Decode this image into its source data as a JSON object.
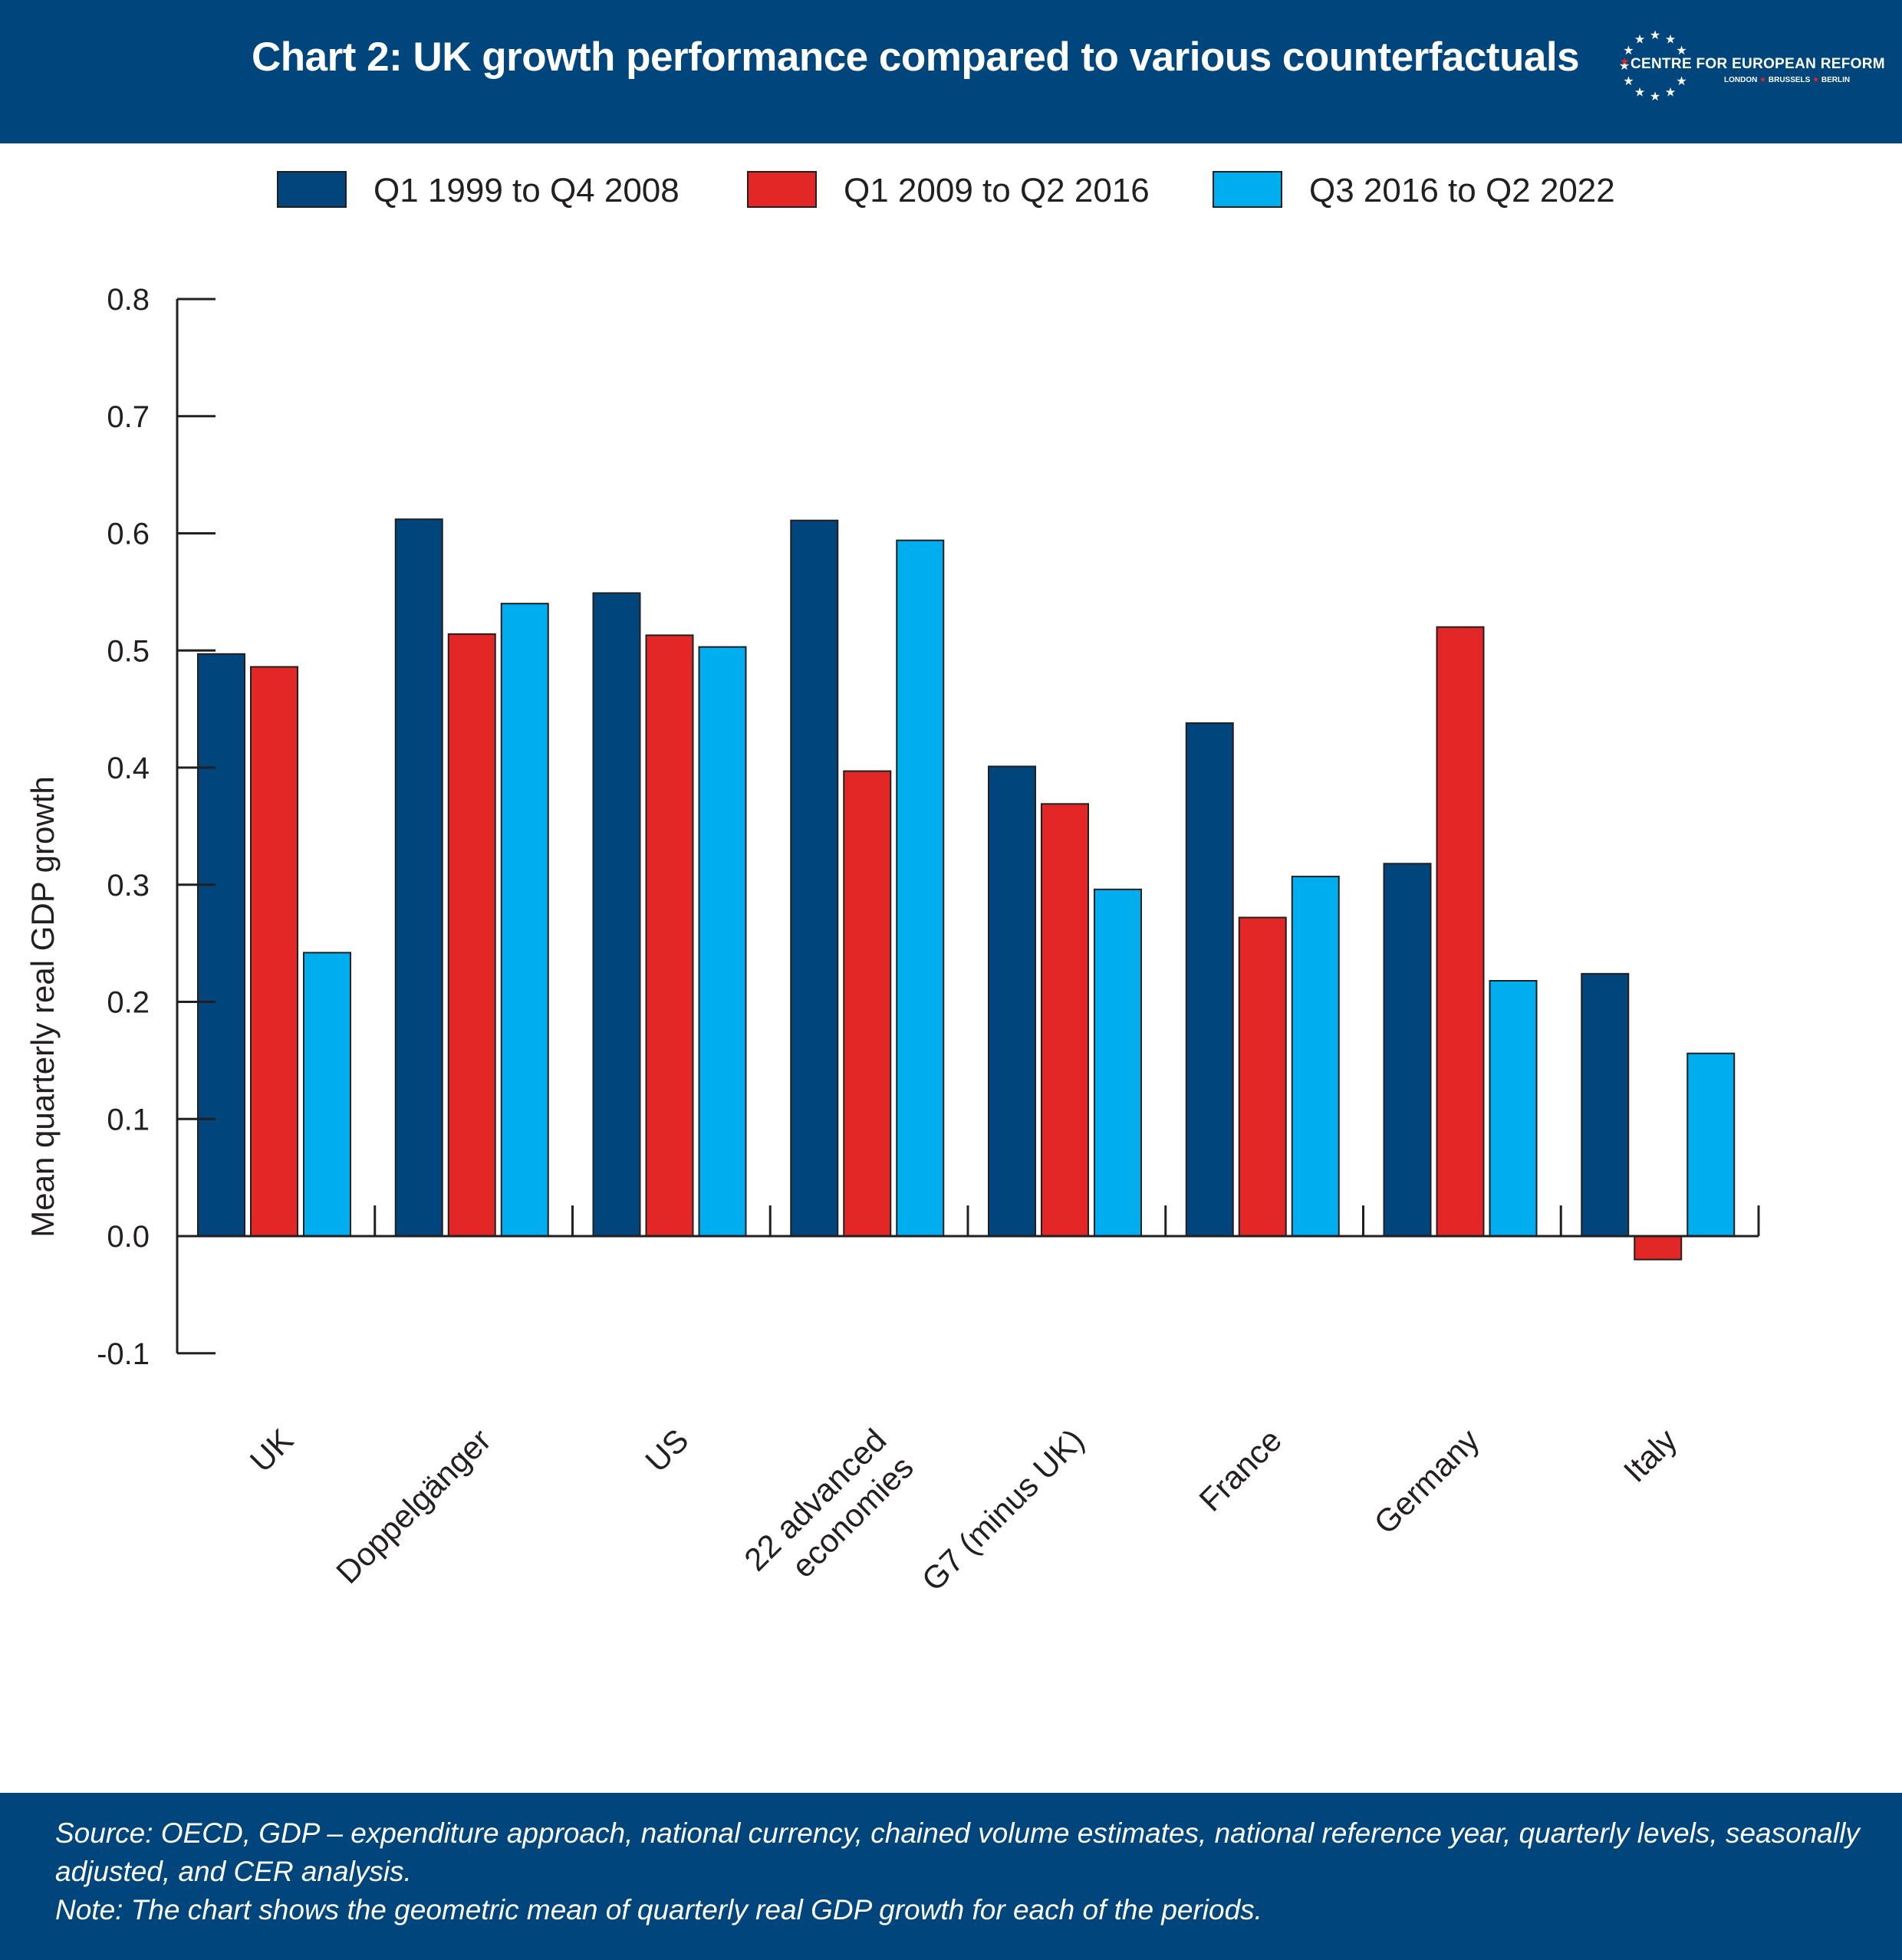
{
  "header": {
    "title": "Chart 2: UK growth performance compared to various counterfactuals",
    "logo_name": "CENTRE FOR EUROPEAN REFORM",
    "logo_cities": [
      "LONDON",
      "BRUSSELS",
      "BERLIN"
    ]
  },
  "footer": {
    "source_line1": "Source:  OECD, GDP – expenditure approach, national currency, chained volume estimates, national reference year, quarterly levels, seasonally",
    "source_line2": "adjusted, and CER analysis.",
    "note": "Note: The chart shows the geometric mean of quarterly real GDP growth for each of the periods."
  },
  "colors": {
    "header_bg": "#00457c",
    "series_1": "#00457c",
    "series_2": "#e32726",
    "series_3": "#00aeef",
    "logo_star": "#e32726"
  },
  "chart_data": {
    "type": "bar",
    "title": "Chart 2: UK growth performance compared to various counterfactuals",
    "xlabel": "",
    "ylabel": "Mean quarterly real GDP growth",
    "ylim": [
      -0.1,
      0.8
    ],
    "yticks": [
      "0.8",
      "0.7",
      "0.6",
      "0.5",
      "0.4",
      "0.3",
      "0.2",
      "0.1",
      "0.0",
      "-0.1"
    ],
    "legend_position": "top",
    "grid": false,
    "categories": [
      "UK",
      "Doppelgänger",
      "US",
      "22 advanced economies",
      "G7 (minus UK)",
      "France",
      "Germany",
      "Italy"
    ],
    "category_labels": [
      [
        "UK"
      ],
      [
        "Doppelgänger"
      ],
      [
        "US"
      ],
      [
        "22 advanced",
        "economies"
      ],
      [
        "G7 (minus UK)"
      ],
      [
        "France"
      ],
      [
        "Germany"
      ],
      [
        "Italy"
      ]
    ],
    "series": [
      {
        "name": "Q1 1999 to Q4 2008",
        "color": "#00457c",
        "values": [
          0.497,
          0.612,
          0.549,
          0.611,
          0.401,
          0.438,
          0.318,
          0.224
        ]
      },
      {
        "name": "Q1 2009 to Q2 2016",
        "color": "#e32726",
        "values": [
          0.486,
          0.514,
          0.513,
          0.397,
          0.369,
          0.272,
          0.52,
          -0.02
        ]
      },
      {
        "name": "Q3 2016 to Q2 2022",
        "color": "#00aeef",
        "values": [
          0.242,
          0.54,
          0.503,
          0.594,
          0.296,
          0.307,
          0.218,
          0.156
        ]
      }
    ]
  }
}
